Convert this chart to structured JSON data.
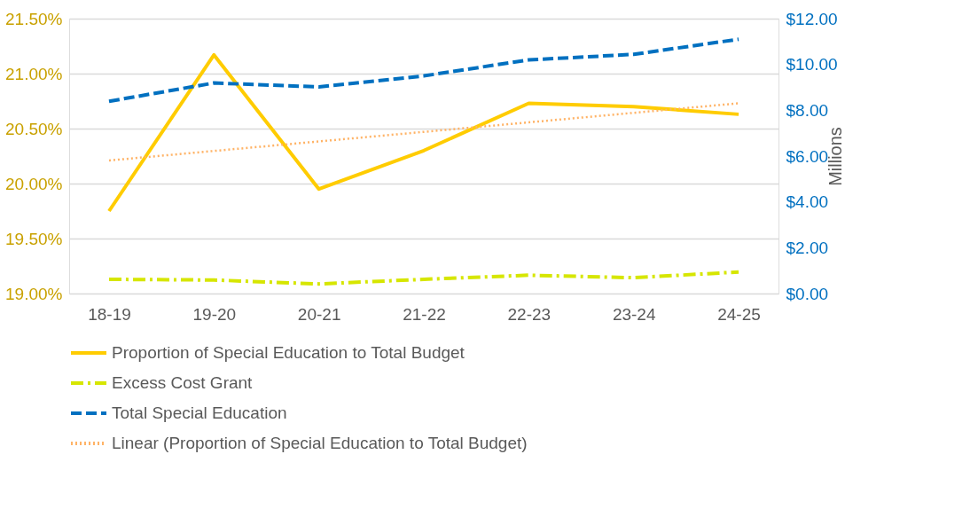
{
  "chart_data": {
    "type": "line",
    "categories": [
      "18-19",
      "19-20",
      "20-21",
      "21-22",
      "22-23",
      "23-24",
      "24-25"
    ],
    "series": [
      {
        "name": "Proportion of Special Education to Total Budget",
        "color": "#ffcc00",
        "values": [
          19.75,
          21.17,
          19.95,
          20.3,
          20.73,
          20.7,
          20.63
        ],
        "line_style": "solid"
      },
      {
        "name": "Excess Cost Grant",
        "color": "#d6e600",
        "values": [
          0.62,
          0.59,
          0.42,
          0.62,
          0.8,
          0.69,
          0.94
        ],
        "axis": "y2",
        "line_style": "dashdot"
      },
      {
        "name": "Total Special Education",
        "color": "#0070c0",
        "values": [
          8.39,
          9.19,
          9.02,
          9.5,
          10.2,
          10.44,
          11.1
        ],
        "axis": "y2",
        "line_style": "dashed"
      },
      {
        "name": "Linear (Proportion of Special Education to Total Budget)",
        "type": "line",
        "color": "#ffb366",
        "x": [
          "18-19",
          "24-25"
        ],
        "values": [
          20.21,
          20.73
        ],
        "line_style": "dotted"
      }
    ],
    "ylim": [
      19.0,
      21.5
    ],
    "yticks": [
      {
        "value": 19.0,
        "label": "19.00%"
      },
      {
        "value": 19.5,
        "label": "19.50%"
      },
      {
        "value": 20.0,
        "label": "20.00%"
      },
      {
        "value": 20.5,
        "label": "20.50%"
      },
      {
        "value": 21.0,
        "label": "21.00%"
      },
      {
        "value": 21.5,
        "label": "21.50%"
      }
    ],
    "y2lim": [
      0,
      12
    ],
    "y2ticks": [
      {
        "value": 0,
        "label": "$0.00"
      },
      {
        "value": 2,
        "label": "$2.00"
      },
      {
        "value": 4,
        "label": "$4.00"
      },
      {
        "value": 6,
        "label": "$6.00"
      },
      {
        "value": 8,
        "label": "$8.00"
      },
      {
        "value": 10,
        "label": "$10.00"
      },
      {
        "value": 12,
        "label": "$12.00"
      }
    ],
    "y2label": "Millions",
    "grid": "y",
    "legend": "bottom",
    "marker": "none"
  }
}
